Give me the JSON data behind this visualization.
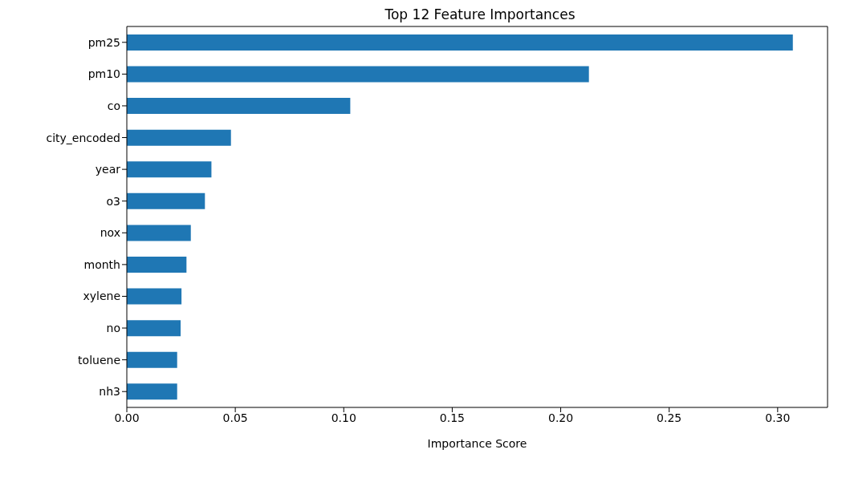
{
  "chart_data": {
    "type": "bar",
    "orientation": "horizontal",
    "title": "Top 12 Feature Importances",
    "xlabel": "Importance Score",
    "categories": [
      "pm25",
      "pm10",
      "co",
      "city_encoded",
      "year",
      "o3",
      "nox",
      "month",
      "xylene",
      "no",
      "toluene",
      "nh3"
    ],
    "values": [
      0.307,
      0.213,
      0.103,
      0.048,
      0.039,
      0.036,
      0.0295,
      0.0275,
      0.0252,
      0.0248,
      0.0232,
      0.0232
    ],
    "color": "#1f77b4",
    "xlim": [
      0,
      0.323
    ],
    "xticks": [
      {
        "value": 0,
        "label": "0.00"
      },
      {
        "value": 0.05,
        "label": "0.05"
      },
      {
        "value": 0.1,
        "label": "0.10"
      },
      {
        "value": 0.15,
        "label": "0.15"
      },
      {
        "value": 0.2,
        "label": "0.20"
      },
      {
        "value": 0.25,
        "label": "0.25"
      },
      {
        "value": 0.3,
        "label": "0.30"
      }
    ],
    "grid": false,
    "legend": false
  }
}
